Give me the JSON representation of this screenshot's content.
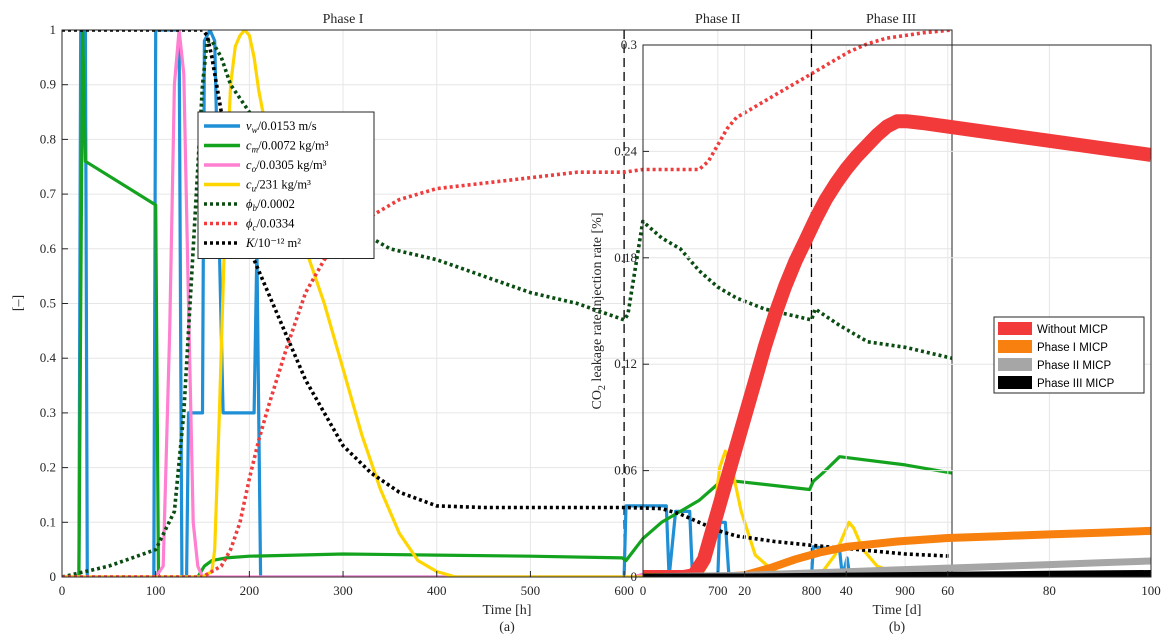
{
  "chart_data": [
    {
      "type": "line",
      "panel_label": "(a)",
      "xlabel": "Time [h]",
      "ylabel": "[–]",
      "xlim": [
        0,
        950
      ],
      "ylim": [
        0,
        1
      ],
      "xticks": [
        0,
        100,
        200,
        300,
        400,
        500,
        600,
        700,
        800,
        900
      ],
      "yticks": [
        0,
        0.1,
        0.2,
        0.3,
        0.4,
        0.5,
        0.6,
        0.7,
        0.8,
        0.9,
        1
      ],
      "ytick_labels": [
        "0",
        "0.1",
        "0.2",
        "0.3",
        "0.4",
        "0.5",
        "0.6",
        "0.7",
        "0.8",
        "0.9",
        "1"
      ],
      "grid": true,
      "legend_position": "upper-middle",
      "phase_lines": [
        600,
        800
      ],
      "phase_labels": [
        {
          "text": "Phase I",
          "x": 300
        },
        {
          "text": "Phase II",
          "x": 700
        },
        {
          "text": "Phase III",
          "x": 885
        }
      ],
      "series": [
        {
          "name_main": "v",
          "name_sub": "w",
          "name_rest": "/0.0153 m/s",
          "color": "#1f8fd6",
          "style": "solid",
          "x": [
            0,
            18,
            20,
            25,
            27,
            98,
            100,
            125,
            128,
            133,
            135,
            150,
            152,
            158,
            163,
            172,
            175,
            205,
            208,
            210,
            212,
            600,
            602,
            645,
            648,
            655,
            658,
            670,
            673,
            700,
            702,
            708,
            712,
            800,
            802,
            830,
            833,
            838,
            841,
            950
          ],
          "y": [
            0,
            0,
            1,
            1,
            0,
            0,
            1,
            1,
            0,
            0,
            0.3,
            0.3,
            0.98,
            1,
            0.98,
            0.3,
            0.3,
            0.3,
            0.6,
            0.3,
            0,
            0,
            0.13,
            0.13,
            0,
            0.12,
            0.12,
            0.12,
            0,
            0,
            0.1,
            0.1,
            0,
            0,
            0.055,
            0.05,
            0,
            0.035,
            0,
            0
          ]
        },
        {
          "name_main": "c",
          "name_sub": "m",
          "name_rest": "/0.0072 kg/m³",
          "color": "#14a31e",
          "style": "solid",
          "x": [
            0,
            18,
            22,
            25,
            100,
            103,
            120,
            135,
            145,
            152,
            160,
            175,
            200,
            300,
            400,
            500,
            598,
            602,
            620,
            640,
            660,
            680,
            700,
            720,
            798,
            802,
            812,
            830,
            900,
            950
          ],
          "y": [
            0,
            0,
            1,
            0.76,
            0.68,
            0,
            0,
            0,
            0,
            0.02,
            0.03,
            0.035,
            0.038,
            0.042,
            0.04,
            0.038,
            0.035,
            0.03,
            0.07,
            0.1,
            0.12,
            0.14,
            0.17,
            0.175,
            0.16,
            0.175,
            0.19,
            0.22,
            0.205,
            0.19
          ]
        },
        {
          "name_main": "c",
          "name_sub": "o",
          "name_rest": "/0.0305 kg/m³",
          "color": "#ff7fd0",
          "style": "solid",
          "x": [
            0,
            100,
            108,
            115,
            120,
            125,
            130,
            135,
            140,
            145,
            150,
            160,
            600,
            610,
            620,
            630,
            950
          ],
          "y": [
            0,
            0,
            0.02,
            0.45,
            0.9,
            1,
            0.92,
            0.5,
            0.1,
            0.02,
            0,
            0,
            0,
            0,
            0.005,
            0,
            0
          ]
        },
        {
          "name_main": "c",
          "name_sub": "u",
          "name_rest": "/231 kg/m³",
          "color": "#ffd500",
          "style": "solid",
          "x": [
            0,
            150,
            160,
            163,
            168,
            175,
            180,
            185,
            190,
            195,
            200,
            205,
            210,
            220,
            240,
            260,
            280,
            300,
            320,
            340,
            360,
            380,
            400,
            420,
            600,
            620,
            680,
            688,
            695,
            702,
            708,
            715,
            725,
            740,
            760,
            800,
            812,
            825,
            835,
            840,
            845,
            855,
            870,
            890,
            910,
            950
          ],
          "y": [
            0,
            0,
            0.01,
            0.05,
            0.3,
            0.7,
            0.9,
            0.97,
            0.99,
            1,
            0.99,
            0.95,
            0.89,
            0.8,
            0.7,
            0.6,
            0.5,
            0.38,
            0.26,
            0.16,
            0.08,
            0.03,
            0.01,
            0,
            0,
            0,
            0,
            0.02,
            0.1,
            0.2,
            0.23,
            0.2,
            0.12,
            0.04,
            0.01,
            0,
            0.01,
            0.04,
            0.08,
            0.1,
            0.09,
            0.05,
            0.02,
            0.008,
            0.003,
            0
          ]
        },
        {
          "name_main": "ϕ",
          "name_sub": "b",
          "name_rest": "/0.0002",
          "color": "#0a4d12",
          "style": "dotted",
          "x": [
            0,
            50,
            100,
            120,
            130,
            140,
            150,
            155,
            160,
            170,
            180,
            200,
            220,
            240,
            260,
            300,
            350,
            400,
            450,
            500,
            550,
            600,
            604,
            620,
            640,
            660,
            680,
            700,
            720,
            750,
            800,
            804,
            830,
            860,
            900,
            950
          ],
          "y": [
            0,
            0.02,
            0.05,
            0.12,
            0.3,
            0.6,
            0.9,
            0.98,
            0.98,
            0.95,
            0.9,
            0.85,
            0.8,
            0.74,
            0.7,
            0.65,
            0.6,
            0.58,
            0.55,
            0.52,
            0.5,
            0.47,
            0.48,
            0.65,
            0.62,
            0.6,
            0.56,
            0.53,
            0.51,
            0.49,
            0.47,
            0.49,
            0.46,
            0.43,
            0.42,
            0.4
          ]
        },
        {
          "name_main": "ϕ",
          "name_sub": "c",
          "name_rest": "/0.0334",
          "color": "#f03c3c",
          "style": "dotted",
          "x": [
            0,
            150,
            170,
            180,
            190,
            200,
            210,
            220,
            240,
            260,
            280,
            300,
            330,
            360,
            400,
            450,
            500,
            550,
            600,
            620,
            640,
            660,
            680,
            690,
            700,
            710,
            720,
            740,
            760,
            780,
            800,
            820,
            840,
            860,
            880,
            900,
            920,
            950
          ],
          "y": [
            0,
            0,
            0.02,
            0.05,
            0.1,
            0.18,
            0.25,
            0.31,
            0.42,
            0.52,
            0.58,
            0.62,
            0.66,
            0.69,
            0.71,
            0.72,
            0.73,
            0.74,
            0.74,
            0.745,
            0.745,
            0.745,
            0.745,
            0.76,
            0.79,
            0.82,
            0.84,
            0.86,
            0.88,
            0.9,
            0.92,
            0.94,
            0.96,
            0.975,
            0.985,
            0.99,
            0.995,
            1
          ]
        },
        {
          "name_main": "K",
          "name_sub": "",
          "name_rest": "/10⁻¹² m²",
          "color": "#000000",
          "style": "dotted",
          "x": [
            0,
            100,
            150,
            155,
            160,
            170,
            180,
            190,
            200,
            220,
            240,
            260,
            280,
            300,
            330,
            360,
            400,
            450,
            500,
            600,
            640,
            660,
            680,
            700,
            720,
            760,
            800,
            850,
            900,
            950
          ],
          "y": [
            1,
            1,
            1,
            0.99,
            0.95,
            0.85,
            0.74,
            0.68,
            0.6,
            0.52,
            0.44,
            0.36,
            0.3,
            0.24,
            0.19,
            0.155,
            0.13,
            0.127,
            0.127,
            0.127,
            0.125,
            0.115,
            0.1,
            0.085,
            0.075,
            0.065,
            0.058,
            0.05,
            0.042,
            0.038
          ]
        }
      ]
    },
    {
      "type": "line",
      "panel_label": "(b)",
      "xlabel": "Time [d]",
      "ylabel_parts": [
        "CO",
        "2",
        " leakage rate/injection rate [%]"
      ],
      "xlim": [
        0,
        100
      ],
      "ylim": [
        0,
        0.3
      ],
      "xticks": [
        0,
        20,
        40,
        60,
        80,
        100
      ],
      "yticks": [
        0,
        0.06,
        0.12,
        0.18,
        0.24,
        0.3
      ],
      "ytick_labels": [
        "0",
        "0.06",
        "0.12",
        "0.18",
        "0.24",
        "0.3"
      ],
      "grid": true,
      "legend_position": "right-middle",
      "series": [
        {
          "name": "Without MICP",
          "color": "#f23a3a",
          "width": 14,
          "x": [
            0,
            8,
            10,
            12,
            14,
            16,
            18,
            20,
            22,
            24,
            26,
            28,
            30,
            32,
            34,
            36,
            38,
            40,
            42,
            44,
            46,
            48,
            50,
            52,
            55,
            60,
            70,
            80,
            90,
            100
          ],
          "y": [
            0,
            0,
            0.001,
            0.01,
            0.03,
            0.05,
            0.07,
            0.09,
            0.11,
            0.13,
            0.148,
            0.164,
            0.178,
            0.19,
            0.202,
            0.213,
            0.222,
            0.23,
            0.237,
            0.243,
            0.249,
            0.254,
            0.257,
            0.257,
            0.256,
            0.254,
            0.25,
            0.246,
            0.242,
            0.238
          ]
        },
        {
          "name": "Phase I MICP",
          "color": "#f7800f",
          "width": 8,
          "x": [
            0,
            15,
            20,
            25,
            30,
            35,
            40,
            50,
            60,
            70,
            80,
            90,
            100
          ],
          "y": [
            0,
            0,
            0.001,
            0.005,
            0.01,
            0.014,
            0.017,
            0.02,
            0.022,
            0.023,
            0.024,
            0.025,
            0.026
          ]
        },
        {
          "name": "Phase II MICP",
          "color": "#a6a6a6",
          "width": 7,
          "x": [
            0,
            20,
            30,
            40,
            50,
            60,
            70,
            80,
            90,
            100
          ],
          "y": [
            0,
            0.001,
            0.002,
            0.003,
            0.004,
            0.005,
            0.006,
            0.007,
            0.008,
            0.009
          ]
        },
        {
          "name": "Phase III MICP",
          "color": "#000000",
          "width": 7,
          "x": [
            0,
            20,
            40,
            60,
            80,
            100
          ],
          "y": [
            0,
            0,
            0.0005,
            0.001,
            0.0015,
            0.002
          ]
        }
      ]
    }
  ]
}
